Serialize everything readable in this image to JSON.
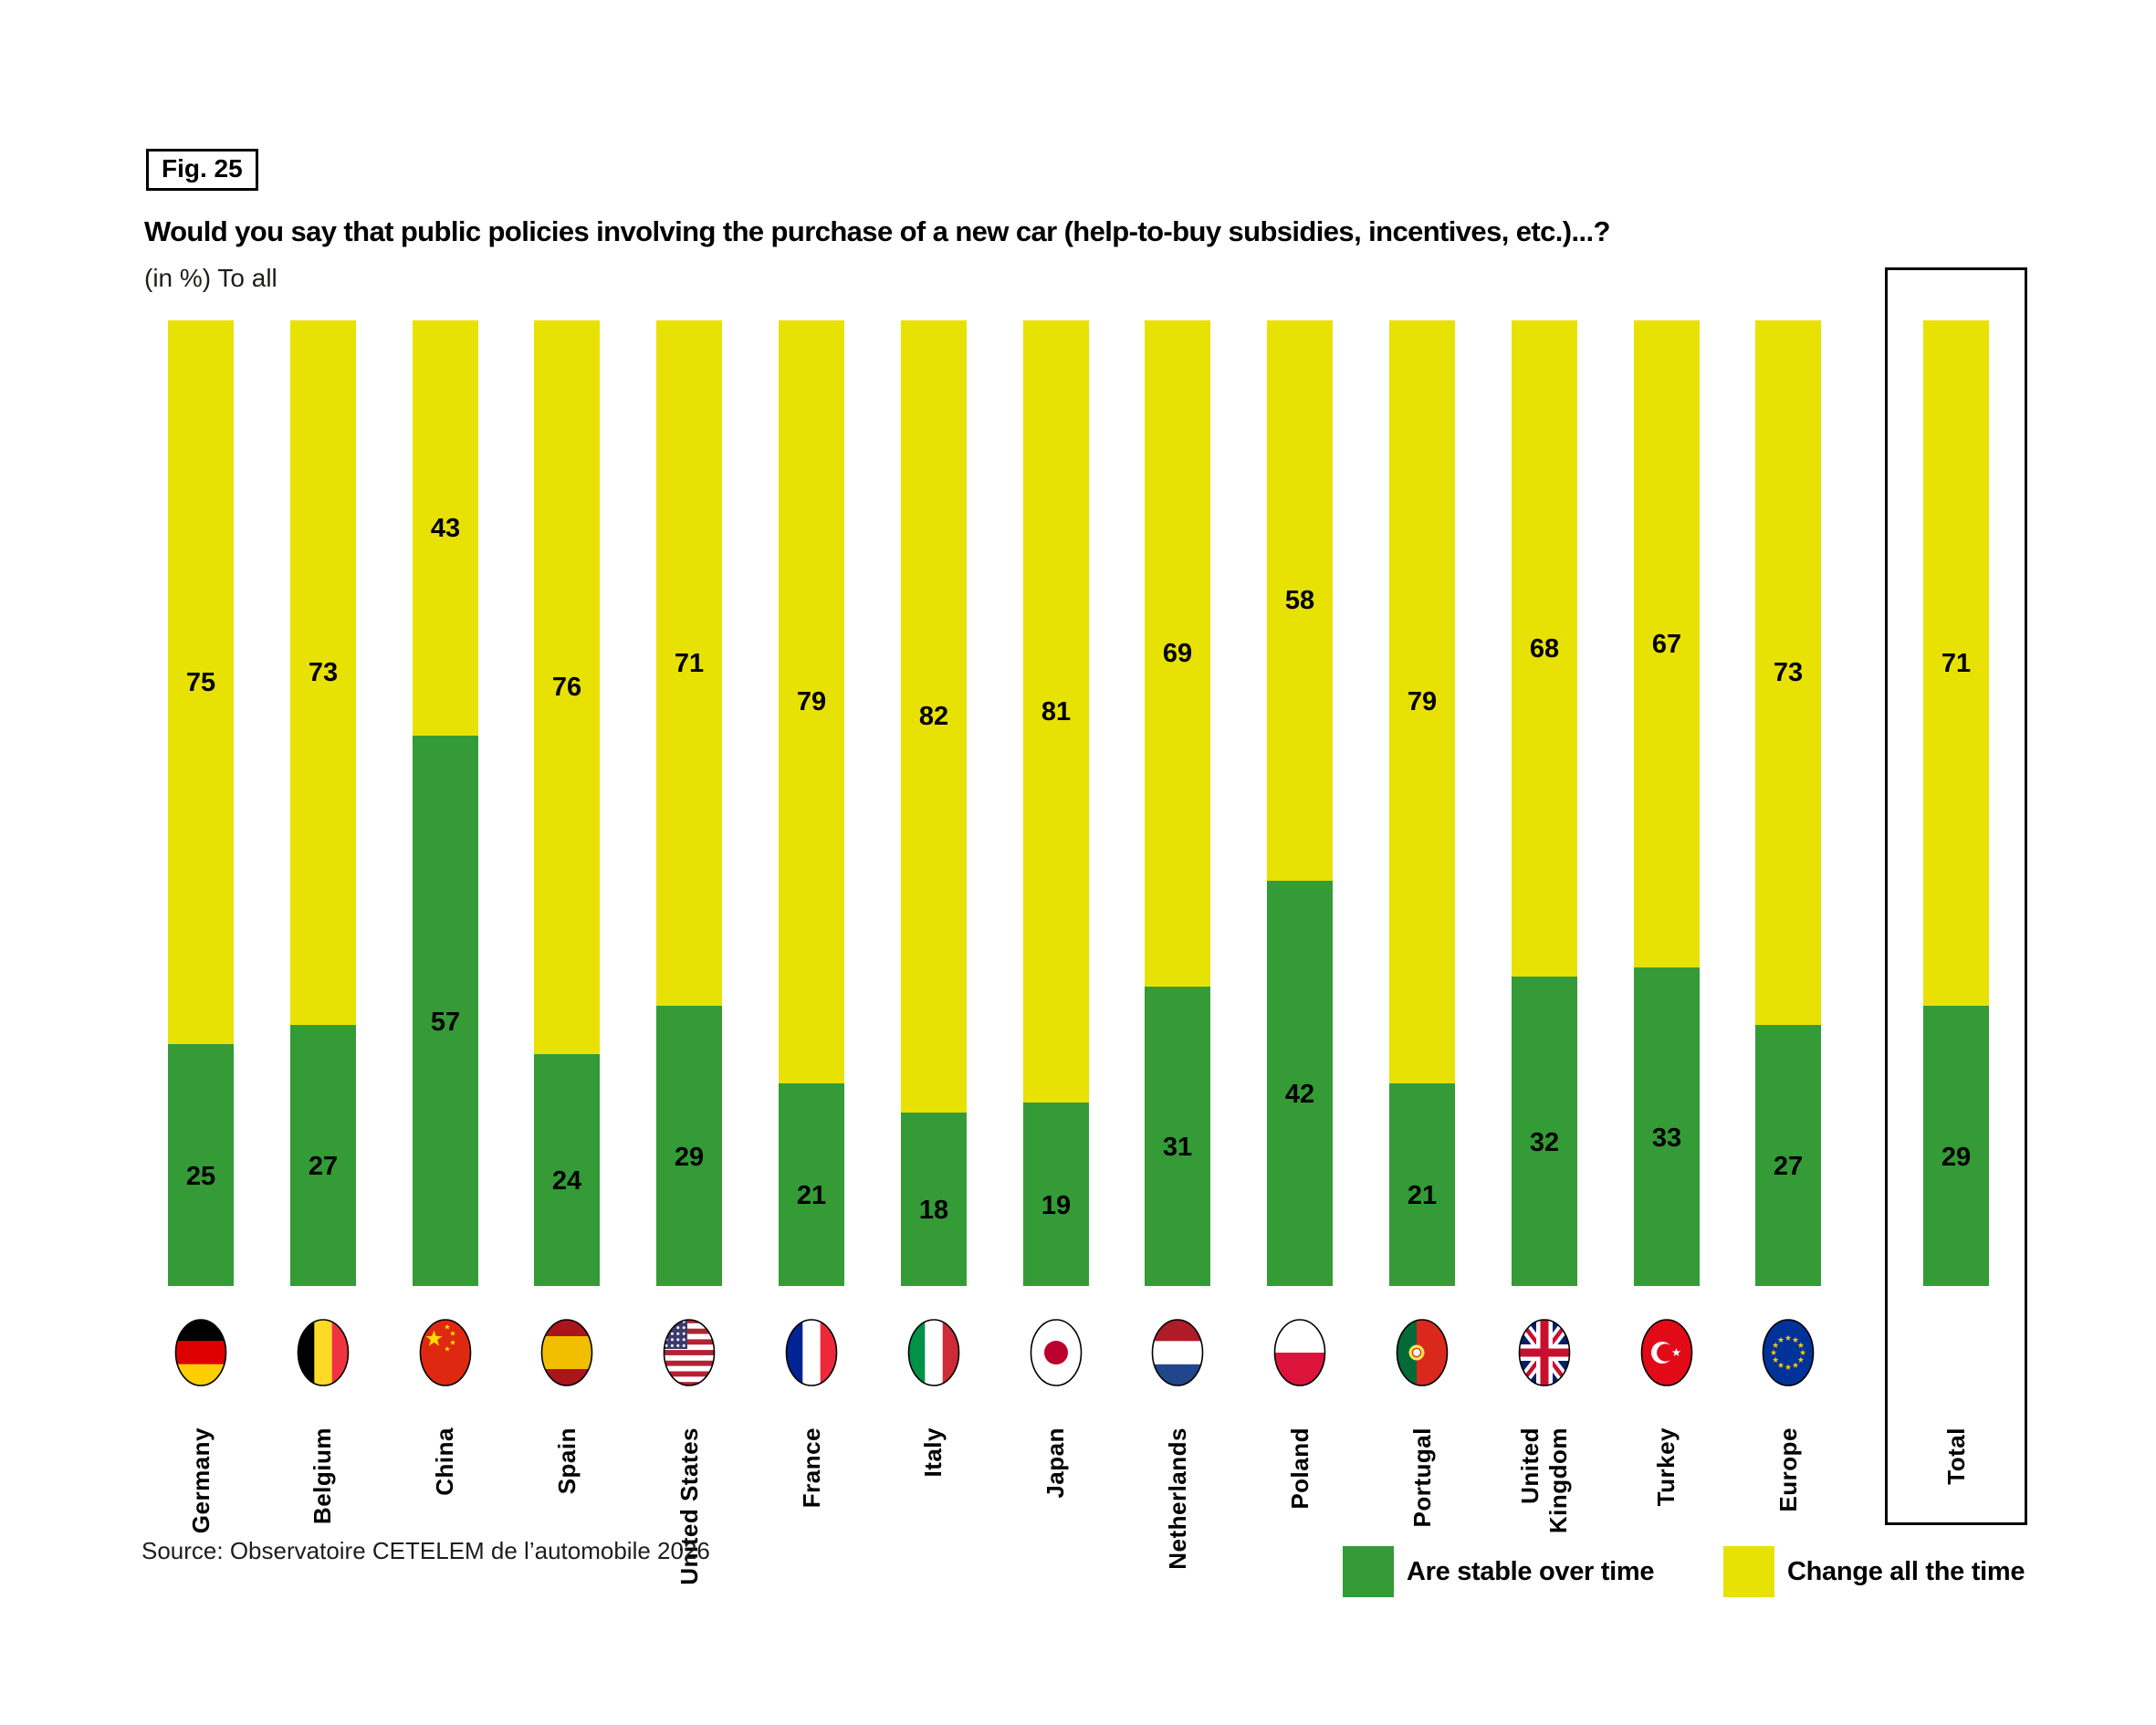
{
  "figure_label": "Fig. 25",
  "title": "Would you say that public policies involving the purchase of a new car (help-to-buy subsidies, incentives, etc.)...?",
  "subtitle": "(in %) To all",
  "source": "Source: Observatoire CETELEM de l’automobile 2026",
  "legend": [
    {
      "label": "Are stable over time",
      "color": "#349b36"
    },
    {
      "label": "Change all the time",
      "color": "#e8e104"
    }
  ],
  "chart_data": {
    "type": "bar",
    "stacked": true,
    "orientation": "vertical",
    "unit": "%",
    "ylim": [
      0,
      100
    ],
    "grid": false,
    "legend_position": "bottom-right",
    "categories": [
      "Germany",
      "Belgium",
      "China",
      "Spain",
      "United States",
      "France",
      "Italy",
      "Japan",
      "Netherlands",
      "Poland",
      "Portugal",
      "United Kingdom",
      "Turkey",
      "Europe",
      "Total"
    ],
    "tick_labels": [
      "Germany",
      "Belgium",
      "China",
      "Spain",
      "United States",
      "France",
      "Italy",
      "Japan",
      "Netherlands",
      "Poland",
      "Portugal",
      "United\nKingdom",
      "Turkey",
      "Europe",
      "Total"
    ],
    "flags": [
      "flag-germany",
      "flag-belgium",
      "flag-china",
      "flag-spain",
      "flag-united-states",
      "flag-france",
      "flag-italy",
      "flag-japan",
      "flag-netherlands",
      "flag-poland",
      "flag-portugal",
      "flag-united-kingdom",
      "flag-turkey",
      "flag-europe",
      null
    ],
    "series": [
      {
        "name": "Are stable over time",
        "color": "#349b36",
        "values": [
          25,
          27,
          57,
          24,
          29,
          21,
          18,
          19,
          31,
          42,
          21,
          32,
          33,
          27,
          29
        ]
      },
      {
        "name": "Change all the time",
        "color": "#e8e104",
        "values": [
          75,
          73,
          43,
          76,
          71,
          79,
          82,
          81,
          69,
          58,
          79,
          68,
          67,
          73,
          71
        ]
      }
    ],
    "highlight_category": "Total"
  }
}
